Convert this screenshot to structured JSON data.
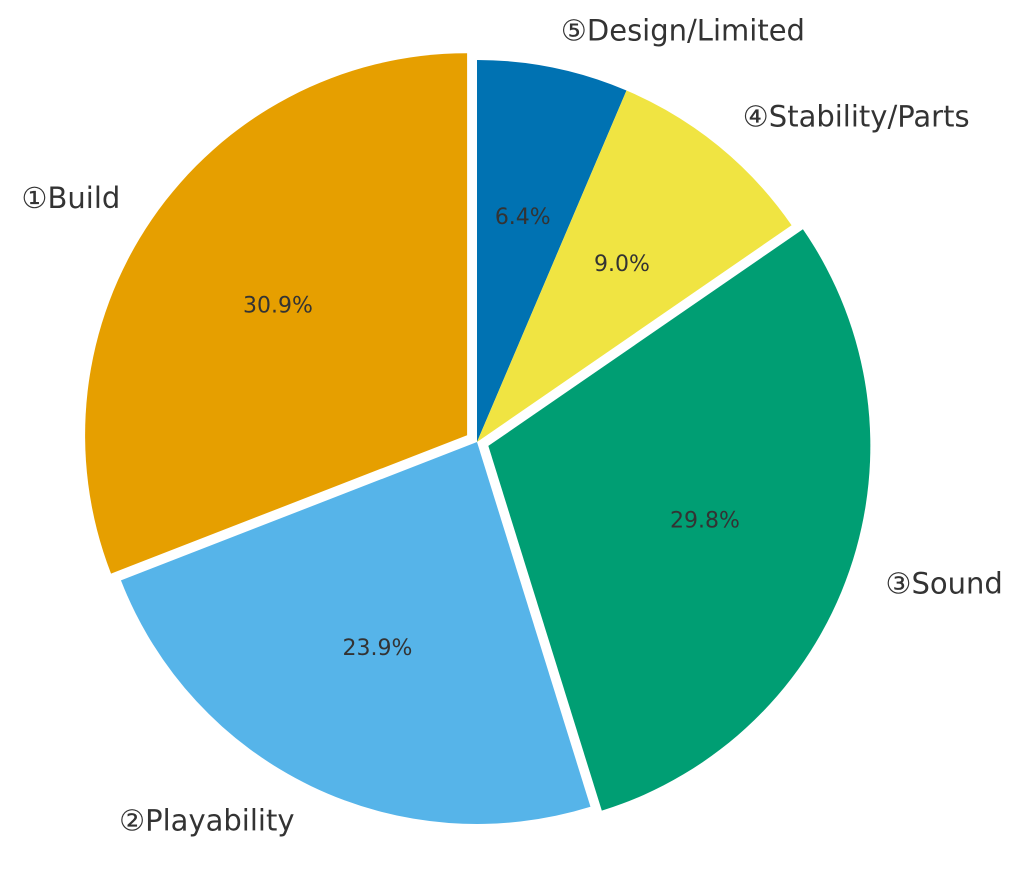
{
  "chart_data": {
    "type": "pie",
    "start_angle_deg": 90,
    "direction": "clockwise",
    "slices": [
      {
        "label": "⑤Design/Limited",
        "value": 6.4,
        "pct_label": "6.4%",
        "color": "#0072B2",
        "exploded": false
      },
      {
        "label": "④Stability/Parts",
        "value": 9.0,
        "pct_label": "9.0%",
        "color": "#F0E442",
        "exploded": false
      },
      {
        "label": "③Sound",
        "value": 29.8,
        "pct_label": "29.8%",
        "color": "#009E73",
        "exploded": true
      },
      {
        "label": "②Playability",
        "value": 23.9,
        "pct_label": "23.9%",
        "color": "#56B4E9",
        "exploded": false
      },
      {
        "label": "①Build",
        "value": 30.9,
        "pct_label": "30.9%",
        "color": "#E69F00",
        "exploded": true
      }
    ]
  }
}
